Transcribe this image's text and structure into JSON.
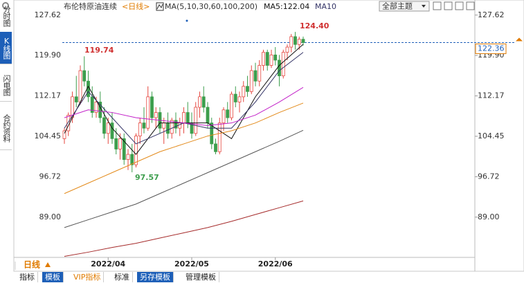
{
  "header": {
    "title": "布伦特原油连续",
    "period": "<日线>",
    "legend_title": "MA(5,10,30,60,100,200)",
    "legend_items": [
      "MA5:122.04",
      "MA10"
    ],
    "theme_button": "全部主题"
  },
  "side_tabs": [
    "分时图",
    "K线图",
    "闪电图",
    "合约资料"
  ],
  "footer": {
    "period": "日线",
    "tabs": [
      "指标",
      "模板",
      "VIP指标",
      "标准",
      "另存模板",
      "管理模板"
    ]
  },
  "chart_data": {
    "type": "candlestick",
    "categories": [
      null,
      null,
      null,
      null,
      null,
      null,
      null,
      null,
      null,
      null,
      null,
      "2022/04",
      null,
      null,
      null,
      null,
      null,
      null,
      null,
      null,
      null,
      null,
      null,
      null,
      null,
      null,
      null,
      null,
      null,
      null,
      null,
      null,
      "2022/05",
      null,
      null,
      null,
      null,
      null,
      null,
      null,
      null,
      null,
      null,
      null,
      null,
      null,
      null,
      null,
      null,
      null,
      null,
      null,
      null,
      "2022/06",
      null,
      null,
      null,
      null,
      null,
      null,
      null
    ],
    "open": [
      104,
      105.5,
      108,
      112,
      111,
      117,
      115,
      112,
      109,
      111,
      108,
      105,
      107,
      104,
      102,
      104,
      100,
      101,
      99,
      104.5,
      107,
      106,
      112,
      108,
      109,
      106,
      107,
      105,
      107.5,
      106,
      107,
      109,
      107,
      105,
      110,
      112,
      110,
      107,
      103,
      101.5,
      107,
      109.5,
      108,
      112.5,
      111,
      112,
      114,
      113,
      117,
      115,
      118,
      120.5,
      118,
      120,
      119,
      116,
      120.5,
      121.5,
      123.5,
      122,
      123
    ],
    "high": [
      106,
      109,
      113,
      116,
      118,
      119.74,
      117,
      114,
      112,
      113,
      110,
      108,
      109,
      106,
      105,
      105,
      102,
      103,
      105,
      108,
      110,
      114,
      113,
      110,
      110,
      108,
      109,
      108,
      109,
      108,
      110,
      111,
      109,
      111,
      113,
      114,
      111,
      108,
      104,
      108,
      110,
      111,
      113,
      114,
      113,
      115,
      116,
      118,
      118.5,
      119,
      121,
      121,
      121,
      121.5,
      120,
      121,
      122,
      124,
      124.4,
      123.5,
      123.5
    ],
    "low": [
      103,
      104.5,
      107,
      110,
      110.5,
      114,
      111,
      108,
      108,
      107,
      104,
      103,
      103,
      101,
      100,
      99,
      98,
      97.57,
      98.5,
      103,
      105,
      105.5,
      107,
      106,
      105,
      103,
      104,
      104,
      105,
      104.5,
      105,
      106,
      104,
      104.5,
      108,
      109,
      106,
      102,
      101,
      101,
      105.5,
      107,
      107.5,
      110,
      109,
      111,
      112,
      112.5,
      114,
      114,
      117,
      117,
      117.5,
      118,
      114,
      115.5,
      119,
      120.5,
      121,
      121,
      121.8
    ],
    "close": [
      105.5,
      108.5,
      112,
      111,
      117,
      115,
      112,
      109,
      111,
      108,
      105,
      107,
      104,
      102,
      104,
      100,
      101,
      99,
      104.5,
      107,
      106,
      112,
      108,
      109,
      106,
      107,
      105,
      107.5,
      106,
      107,
      109,
      107,
      105,
      110,
      112,
      110,
      107,
      103,
      101.5,
      107,
      109.5,
      108,
      112.5,
      111,
      112,
      114,
      113,
      117,
      115,
      118,
      120.5,
      118,
      120,
      119,
      116,
      120.5,
      121.5,
      123.5,
      122,
      123,
      122.36
    ],
    "up_color": "#e5463e",
    "down_color": "#3d9e4d",
    "series": [
      {
        "color": "#111111",
        "x": [
          0,
          6,
          12,
          18,
          24,
          30,
          36,
          42,
          48,
          54,
          60
        ],
        "values": [
          105,
          114,
          106,
          101,
          107,
          107,
          107,
          104,
          112,
          118,
          122.04
        ]
      },
      {
        "color": "#333366",
        "x": [
          0,
          6,
          12,
          18,
          24,
          30,
          36,
          42,
          48,
          54,
          60
        ],
        "values": [
          106,
          113,
          108,
          103,
          105,
          107,
          106,
          106,
          111,
          117,
          120.5
        ]
      },
      {
        "color": "#c21fc8",
        "x": [
          0,
          6,
          12,
          18,
          24,
          30,
          36,
          42,
          48,
          54,
          60
        ],
        "values": [
          108,
          109.5,
          109,
          108,
          107.5,
          107,
          106.5,
          107,
          108.5,
          111,
          113.8
        ]
      },
      {
        "color": "#e38a1a",
        "x": [
          0,
          6,
          12,
          18,
          24,
          30,
          36,
          42,
          48,
          54,
          60
        ],
        "values": [
          93.5,
          95.5,
          97.5,
          99.5,
          101.5,
          103,
          104.5,
          105.5,
          107,
          109,
          110.8
        ]
      },
      {
        "color": "#555555",
        "x": [
          0,
          6,
          12,
          18,
          24,
          30,
          36,
          42,
          48,
          54,
          60
        ],
        "values": [
          87,
          88.5,
          90,
          91.5,
          93.5,
          95.5,
          97.5,
          99.5,
          101.5,
          103.5,
          105.6
        ]
      },
      {
        "color": "#a52a2a",
        "x": [
          0,
          6,
          12,
          18,
          24,
          30,
          36,
          42,
          48,
          54,
          60
        ],
        "values": [
          81.5,
          82.3,
          83.2,
          84,
          85,
          86,
          87,
          88.2,
          89.5,
          90.8,
          92.1
        ]
      }
    ],
    "ylim": [
      81.3,
      130.5
    ],
    "yticks": [
      127.62,
      {
        "value": 119.9,
        "label": "119.90"
      },
      112.17,
      104.45,
      96.72,
      {
        "value": 89,
        "label": "89.00"
      }
    ],
    "last_price": 122.36,
    "annotations": [
      "124.40",
      "119.74",
      "97.57"
    ]
  }
}
